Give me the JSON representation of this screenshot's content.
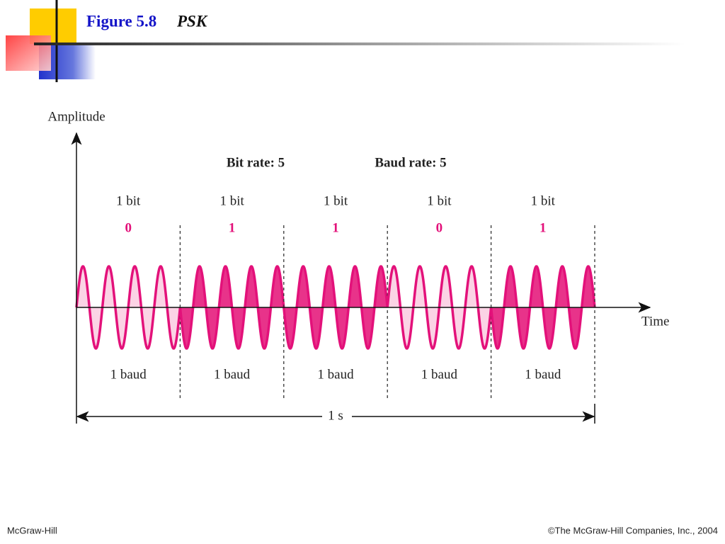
{
  "header": {
    "figure": "Figure 5.8",
    "title": "PSK"
  },
  "diagram": {
    "y_axis_label": "Amplitude",
    "x_axis_label": "Time",
    "bit_rate": "Bit rate: 5",
    "baud_rate": "Baud rate: 5",
    "segments": [
      {
        "bit_label": "1 bit",
        "bit": "0",
        "baud_label": "1 baud"
      },
      {
        "bit_label": "1 bit",
        "bit": "1",
        "baud_label": "1 baud"
      },
      {
        "bit_label": "1 bit",
        "bit": "1",
        "baud_label": "1 baud"
      },
      {
        "bit_label": "1 bit",
        "bit": "0",
        "baud_label": "1 baud"
      },
      {
        "bit_label": "1 bit",
        "bit": "1",
        "baud_label": "1 baud"
      }
    ],
    "duration": "1 s"
  },
  "footer": {
    "left": "McGraw-Hill",
    "right": "©The McGraw-Hill Companies, Inc., 2004"
  }
}
